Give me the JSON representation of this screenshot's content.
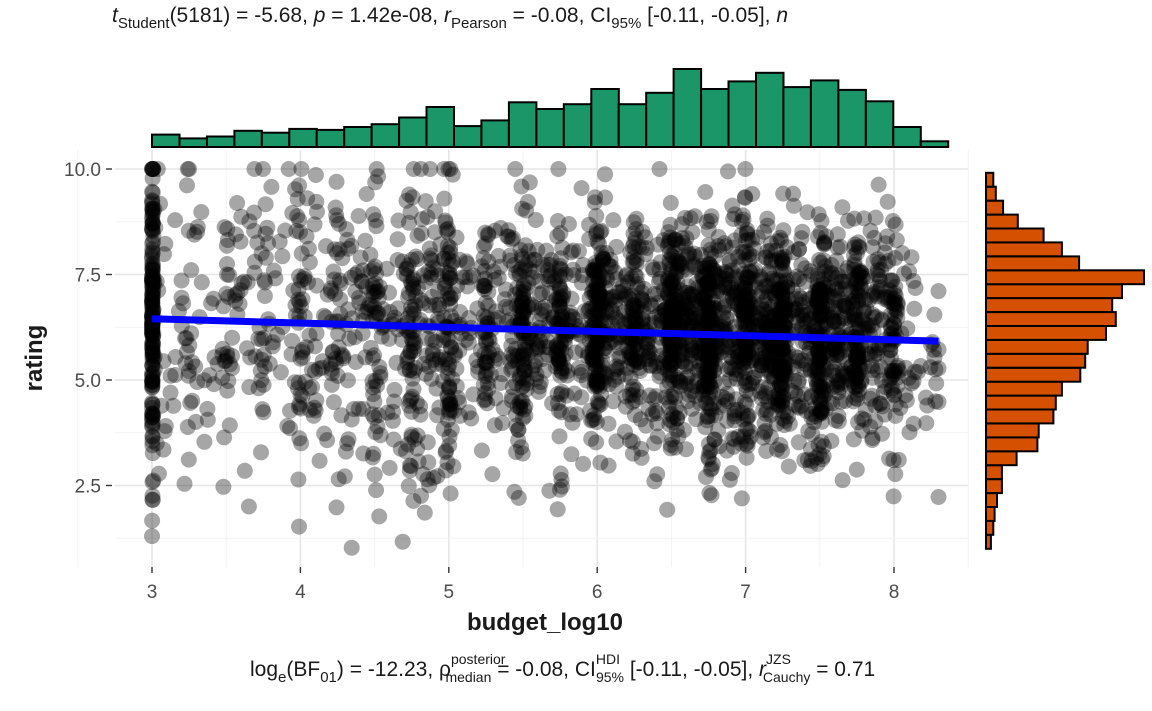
{
  "chart_data": {
    "type": "scatter",
    "title": {
      "t_label": "t",
      "t_sub": "Student",
      "t_df": "(5181) = -5.68, ",
      "p_label": "p",
      "p_value": " = 1.42e-08, ",
      "r_label": "r",
      "r_sub": "Pearson",
      "r_value": " = -0.08, ",
      "ci_label": "CI",
      "ci_sub": "95%",
      "ci_value": " [-0.11, -0.05], ",
      "n_label": "n"
    },
    "subtitle": {
      "bf_label": "log",
      "bf_sub": "e",
      "bf_mid": "(BF",
      "bf_sub2": "01",
      "bf_value": ") = -12.23, ",
      "rho_label": "ρ",
      "rho_sup": "posterior",
      "rho_sub": "median",
      "rho_value": " = -0.08, ",
      "ci_label": "CI",
      "ci_sup": "HDI",
      "ci_sub": "95%",
      "ci_value": " [-0.11, -0.05], ",
      "r_label": "r",
      "r_sup": "JZS",
      "r_sub": "Cauchy",
      "r_value": " = 0.71"
    },
    "xlabel": "budget_log10",
    "ylabel": "rating",
    "xlim": [
      2.75,
      8.5
    ],
    "ylim": [
      0.8,
      10.5
    ],
    "x_ticks": [
      3,
      4,
      5,
      6,
      7,
      8
    ],
    "x_tick_labels": [
      "3",
      "4",
      "5",
      "6",
      "7",
      "8"
    ],
    "y_ticks": [
      2.5,
      5.0,
      7.5,
      10.0
    ],
    "y_tick_labels": [
      "2.5",
      "5.0",
      "7.5",
      "10.0"
    ],
    "n_points": 5183,
    "regression_line": {
      "x": [
        3.0,
        8.3
      ],
      "y": [
        6.45,
        5.92
      ],
      "color": "#0000ff"
    },
    "point_color": "#000000",
    "grid": true,
    "x_marginal_histogram": {
      "color": "#1b9668",
      "bin_edges": [
        3.0,
        3.185,
        3.37,
        3.555,
        3.74,
        3.925,
        4.11,
        4.295,
        4.48,
        4.665,
        4.85,
        5.035,
        5.22,
        5.405,
        5.59,
        5.775,
        5.96,
        6.145,
        6.33,
        6.515,
        6.7,
        6.885,
        7.07,
        7.255,
        7.44,
        7.625,
        7.81,
        7.995,
        8.18,
        8.365
      ],
      "counts": [
        13,
        9,
        11,
        17,
        15,
        19,
        18,
        21,
        24,
        31,
        42,
        22,
        28,
        47,
        40,
        45,
        61,
        45,
        57,
        82,
        61,
        69,
        78,
        63,
        70,
        60,
        48,
        21,
        6
      ]
    },
    "y_marginal_histogram": {
      "color": "#d55000",
      "bin_edges": [
        1.0,
        1.33,
        1.66,
        1.99,
        2.32,
        2.65,
        2.98,
        3.31,
        3.64,
        3.97,
        4.3,
        4.63,
        4.96,
        5.29,
        5.62,
        5.95,
        6.28,
        6.61,
        6.94,
        7.27,
        7.6,
        7.93,
        8.26,
        8.59,
        8.92,
        9.25,
        9.58,
        9.91
      ],
      "counts": [
        4,
        6,
        7,
        9,
        13,
        13,
        25,
        42,
        43,
        55,
        57,
        62,
        77,
        81,
        83,
        98,
        106,
        103,
        111,
        129,
        76,
        62,
        47,
        26,
        14,
        8,
        6
      ]
    }
  }
}
